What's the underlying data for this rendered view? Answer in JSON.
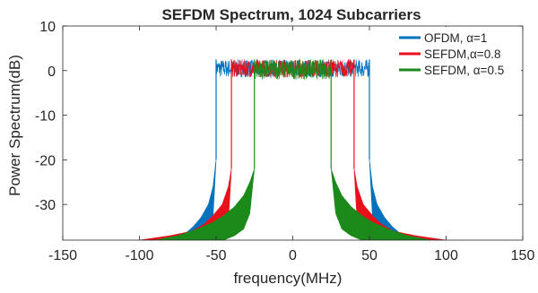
{
  "chart_data": {
    "type": "area",
    "title": "SEFDM Spectrum, 1024 Subcarriers",
    "xlabel": "frequency(MHz)",
    "ylabel": "Power Spectrum(dB)",
    "xlim": [
      -150,
      150
    ],
    "ylim": [
      -38,
      10
    ],
    "x_ticks": [
      -150,
      -100,
      -50,
      0,
      50,
      100,
      150
    ],
    "y_ticks": [
      -30,
      -20,
      -10,
      0,
      10
    ],
    "grid": false,
    "legend_position": "top-right",
    "series": [
      {
        "name": "OFDM, α=1",
        "color": "#0072BD",
        "band_edge_mhz": 50,
        "inband_db": [
          -1.5,
          2.5
        ],
        "sidelobe_envelope": {
          "x": [
            50,
            52,
            55,
            60,
            65,
            70,
            80
          ],
          "upper_db": [
            -20,
            -26,
            -30,
            -33,
            -35,
            -36.5,
            -38
          ],
          "lower_db": [
            -20,
            -33,
            -36.5,
            -37.5,
            -38,
            -38,
            -38
          ]
        }
      },
      {
        "name": "SEFDM,α=0.8",
        "color": "#E8101A",
        "band_edge_mhz": 40,
        "inband_db": [
          -1.5,
          2.5
        ],
        "sidelobe_envelope": {
          "x": [
            40,
            42,
            46,
            52,
            58,
            66,
            80,
            100
          ],
          "upper_db": [
            -22,
            -26,
            -30,
            -32.5,
            -34.5,
            -36,
            -37,
            -38
          ],
          "lower_db": [
            -22,
            -34,
            -36.5,
            -37.5,
            -38,
            -38,
            -38,
            -38
          ]
        }
      },
      {
        "name": "SEFDM, α=0.5",
        "color": "#1B8A1B",
        "band_edge_mhz": 25,
        "inband_db": [
          -2,
          2.5
        ],
        "sidelobe_envelope": {
          "x": [
            25,
            28,
            32,
            38,
            45,
            52,
            62,
            75,
            90
          ],
          "upper_db": [
            -22,
            -25,
            -28,
            -30.5,
            -32.5,
            -34,
            -35.5,
            -37,
            -38
          ],
          "lower_db": [
            -22,
            -32,
            -35.5,
            -37,
            -38,
            -38,
            -38,
            -38,
            -38
          ]
        }
      }
    ]
  }
}
